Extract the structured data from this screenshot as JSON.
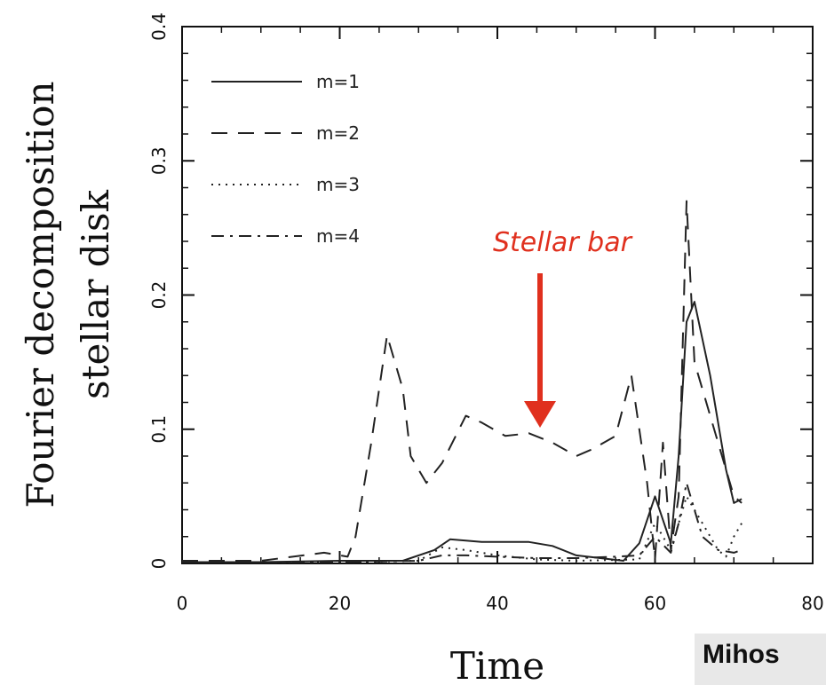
{
  "chart_data": {
    "type": "line",
    "xlabel": "Time",
    "ylabel_lines": [
      "Fourier decomposition",
      "stellar disk"
    ],
    "xlim": [
      0,
      80
    ],
    "ylim": [
      0,
      0.4
    ],
    "x_ticks": [
      0,
      20,
      40,
      60,
      80
    ],
    "x_tick_labels": [
      "0",
      "20",
      "40",
      "60",
      "80"
    ],
    "y_ticks": [
      0,
      0.1,
      0.2,
      0.3,
      0.4
    ],
    "y_tick_labels": [
      "0",
      "0.1",
      "0.2",
      "0.3",
      "0.4"
    ],
    "legend_position": "top-left",
    "series": [
      {
        "name": "m=1",
        "style": "solid",
        "points": [
          [
            0,
            0.001
          ],
          [
            10,
            0.001
          ],
          [
            20,
            0.002
          ],
          [
            28,
            0.002
          ],
          [
            32,
            0.01
          ],
          [
            34,
            0.018
          ],
          [
            38,
            0.016
          ],
          [
            44,
            0.016
          ],
          [
            47,
            0.013
          ],
          [
            50,
            0.006
          ],
          [
            56,
            0.002
          ],
          [
            58,
            0.015
          ],
          [
            60,
            0.05
          ],
          [
            62,
            0.015
          ],
          [
            63,
            0.08
          ],
          [
            64,
            0.18
          ],
          [
            65,
            0.195
          ],
          [
            67,
            0.14
          ],
          [
            69,
            0.07
          ],
          [
            70,
            0.045
          ],
          [
            71,
            0.048
          ]
        ]
      },
      {
        "name": "m=2",
        "style": "dashed",
        "points": [
          [
            0,
            0.002
          ],
          [
            10,
            0.002
          ],
          [
            18,
            0.008
          ],
          [
            21,
            0.005
          ],
          [
            22,
            0.02
          ],
          [
            24,
            0.09
          ],
          [
            26,
            0.17
          ],
          [
            28,
            0.13
          ],
          [
            29,
            0.08
          ],
          [
            31,
            0.06
          ],
          [
            33,
            0.075
          ],
          [
            36,
            0.11
          ],
          [
            38,
            0.105
          ],
          [
            41,
            0.095
          ],
          [
            44,
            0.097
          ],
          [
            47,
            0.09
          ],
          [
            50,
            0.08
          ],
          [
            52,
            0.085
          ],
          [
            55,
            0.095
          ],
          [
            57,
            0.14
          ],
          [
            58,
            0.1
          ],
          [
            59,
            0.06
          ],
          [
            60,
            0.003
          ],
          [
            61,
            0.09
          ],
          [
            62,
            0.01
          ],
          [
            63,
            0.05
          ],
          [
            64,
            0.27
          ],
          [
            65,
            0.15
          ],
          [
            66,
            0.13
          ],
          [
            68,
            0.09
          ],
          [
            70,
            0.05
          ],
          [
            71,
            0.045
          ]
        ]
      },
      {
        "name": "m=3",
        "style": "dotted",
        "points": [
          [
            0,
            0.001
          ],
          [
            20,
            0.001
          ],
          [
            30,
            0.002
          ],
          [
            33,
            0.012
          ],
          [
            36,
            0.01
          ],
          [
            40,
            0.006
          ],
          [
            45,
            0.003
          ],
          [
            50,
            0.002
          ],
          [
            58,
            0.003
          ],
          [
            60,
            0.03
          ],
          [
            62,
            0.01
          ],
          [
            64,
            0.05
          ],
          [
            66,
            0.03
          ],
          [
            68,
            0.01
          ],
          [
            69,
            0.005
          ],
          [
            70,
            0.02
          ],
          [
            71,
            0.03
          ]
        ]
      },
      {
        "name": "m=4",
        "style": "dashdot",
        "points": [
          [
            0,
            0.001
          ],
          [
            20,
            0.001
          ],
          [
            30,
            0.002
          ],
          [
            33,
            0.006
          ],
          [
            36,
            0.006
          ],
          [
            40,
            0.005
          ],
          [
            45,
            0.004
          ],
          [
            50,
            0.004
          ],
          [
            55,
            0.005
          ],
          [
            58,
            0.006
          ],
          [
            60,
            0.02
          ],
          [
            62,
            0.008
          ],
          [
            63,
            0.03
          ],
          [
            64,
            0.06
          ],
          [
            65,
            0.04
          ],
          [
            66,
            0.02
          ],
          [
            68,
            0.01
          ],
          [
            70,
            0.008
          ],
          [
            71,
            0.01
          ]
        ]
      }
    ],
    "annotation": {
      "text": "Stellar bar",
      "target": [
        45,
        0.1
      ],
      "color": "#e0301e"
    }
  },
  "credit": "Mihos"
}
